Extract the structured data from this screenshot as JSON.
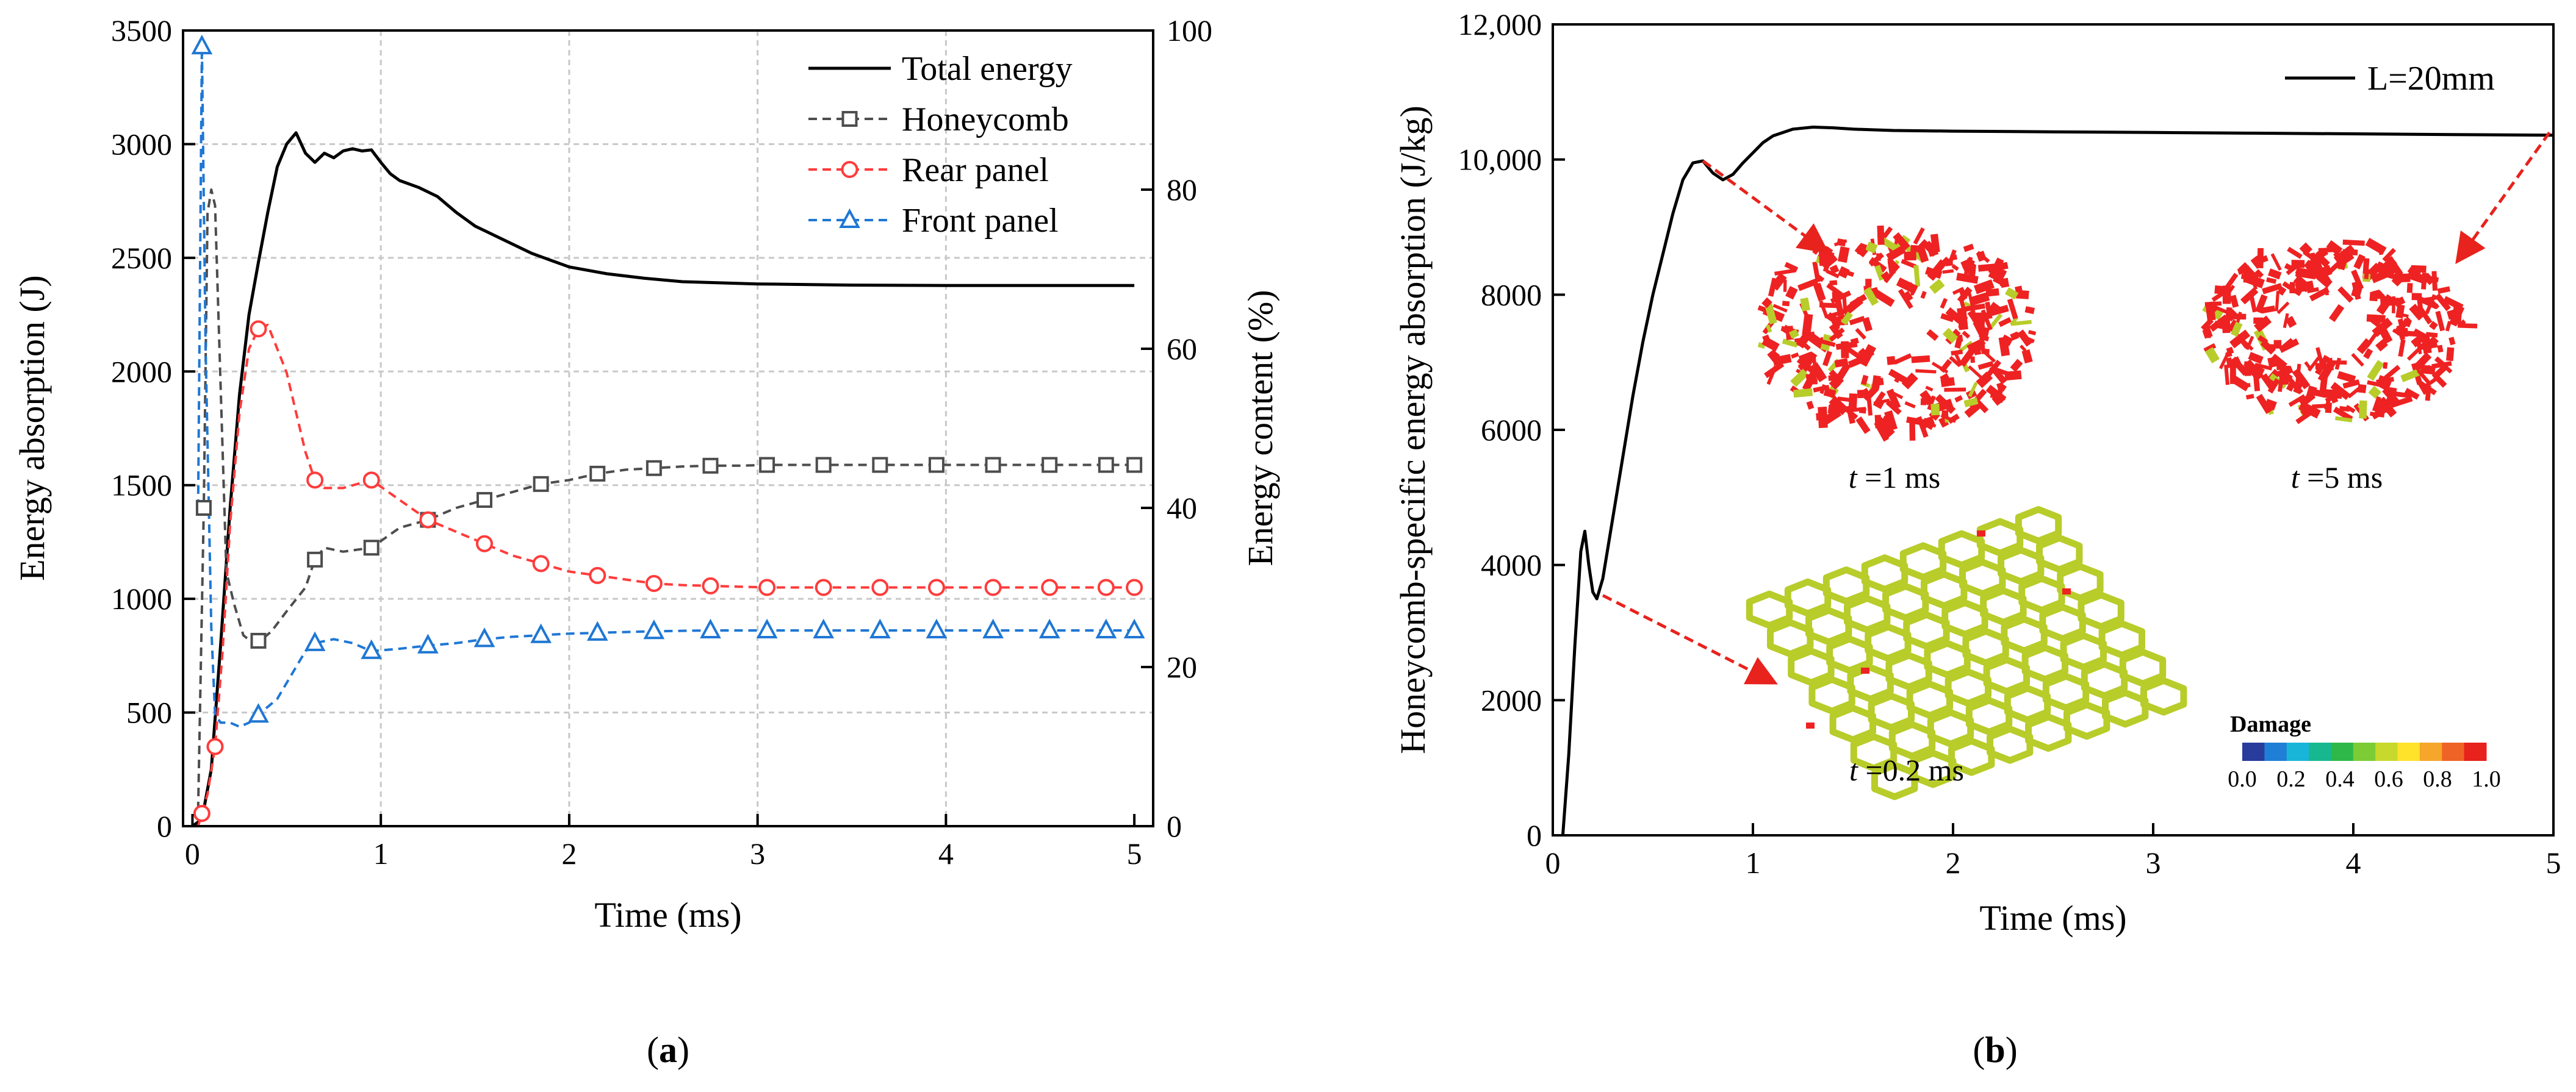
{
  "colors": {
    "total": "#000000",
    "honeycomb": "#4d4d4d",
    "rear": "#ff3b3b",
    "front": "#1f77d4",
    "grid": "#c8c8c8",
    "arrow": "#e8221c",
    "damage_red": "#ee2222",
    "damage_yellow": "#b8cc2a"
  },
  "chart_data": [
    {
      "type": "line",
      "panel_label": "a",
      "xlabel": "Time (ms)",
      "ylabel": "Energy absorption (J)",
      "ylabel_right": "Energy content (%)",
      "xlim": [
        -0.05,
        5.1
      ],
      "ylim": [
        0,
        3500
      ],
      "ylim_right": [
        0,
        100
      ],
      "xticks": [
        0,
        1,
        2,
        3,
        4,
        5
      ],
      "yticks": [
        0,
        500,
        1000,
        1500,
        2000,
        2500,
        3000,
        3500
      ],
      "yticks_right": [
        0,
        20,
        40,
        60,
        80,
        100
      ],
      "grid": true,
      "legend_position": "top-right",
      "series": [
        {
          "name": "Total energy",
          "axis": "left",
          "marker": "none",
          "x": [
            0.0,
            0.05,
            0.1,
            0.15,
            0.2,
            0.25,
            0.3,
            0.35,
            0.4,
            0.45,
            0.5,
            0.55,
            0.6,
            0.65,
            0.7,
            0.75,
            0.8,
            0.85,
            0.9,
            0.95,
            1.0,
            1.05,
            1.1,
            1.2,
            1.3,
            1.4,
            1.5,
            1.6,
            1.7,
            1.8,
            1.9,
            2.0,
            2.2,
            2.4,
            2.6,
            2.8,
            3.0,
            3.5,
            4.0,
            4.5,
            5.0
          ],
          "y": [
            0,
            30,
            250,
            800,
            1400,
            1900,
            2250,
            2480,
            2700,
            2900,
            3000,
            3050,
            2960,
            2920,
            2960,
            2940,
            2970,
            2980,
            2970,
            2975,
            2920,
            2870,
            2840,
            2810,
            2770,
            2700,
            2640,
            2600,
            2560,
            2520,
            2490,
            2460,
            2430,
            2410,
            2395,
            2390,
            2385,
            2380,
            2378,
            2378,
            2378
          ]
        },
        {
          "name": "Honeycomb",
          "axis": "right",
          "marker": "square",
          "x": [
            0.03,
            0.06,
            0.08,
            0.1,
            0.12,
            0.15,
            0.18,
            0.22,
            0.27,
            0.32,
            0.37,
            0.42,
            0.5,
            0.6,
            0.65,
            0.7,
            0.8,
            0.95,
            1.1,
            1.25,
            1.4,
            1.55,
            1.7,
            1.85,
            2.0,
            2.15,
            2.3,
            2.45,
            2.6,
            2.75,
            2.9,
            3.05,
            3.35,
            3.65,
            3.95,
            4.25,
            4.55,
            4.85,
            5.0
          ],
          "y": [
            2,
            40,
            77,
            80,
            78,
            55,
            32,
            28,
            24,
            23,
            23.5,
            24.5,
            27,
            30,
            33.5,
            35,
            34.5,
            35,
            37.5,
            38.5,
            40,
            41,
            42,
            43,
            43.5,
            44.3,
            44.8,
            45,
            45.2,
            45.3,
            45.3,
            45.4,
            45.4,
            45.4,
            45.4,
            45.4,
            45.4,
            45.4,
            45.4
          ],
          "marker_x": [
            0.06,
            0.35,
            0.65,
            0.95,
            1.25,
            1.55,
            1.85,
            2.15,
            2.45,
            2.75,
            3.05,
            3.35,
            3.65,
            3.95,
            4.25,
            4.55,
            4.85,
            5.0
          ]
        },
        {
          "name": "Rear panel",
          "axis": "right",
          "marker": "circle",
          "x": [
            0.03,
            0.08,
            0.12,
            0.16,
            0.2,
            0.25,
            0.3,
            0.35,
            0.4,
            0.45,
            0.5,
            0.55,
            0.6,
            0.65,
            0.7,
            0.8,
            0.95,
            1.1,
            1.25,
            1.4,
            1.55,
            1.7,
            1.85,
            2.0,
            2.15,
            2.3,
            2.45,
            2.6,
            2.75,
            2.9,
            3.05,
            3.35,
            3.65,
            3.95,
            4.25,
            4.55,
            4.85,
            5.0
          ],
          "y": [
            0,
            4,
            10,
            22,
            38,
            52,
            60,
            62.5,
            63,
            60,
            57,
            52,
            47,
            43.5,
            42.5,
            42.5,
            43.5,
            41,
            38.5,
            37,
            35.5,
            34,
            33,
            32,
            31.5,
            31,
            30.5,
            30.3,
            30.2,
            30.1,
            30,
            30,
            30,
            30,
            30,
            30,
            30,
            30
          ],
          "marker_x": [
            0.05,
            0.12,
            0.35,
            0.65,
            0.95,
            1.25,
            1.55,
            1.85,
            2.15,
            2.45,
            2.75,
            3.05,
            3.35,
            3.65,
            3.95,
            4.25,
            4.55,
            4.85,
            5.0
          ]
        },
        {
          "name": "Front panel",
          "axis": "right",
          "marker": "triangle",
          "x": [
            0.03,
            0.05,
            0.07,
            0.1,
            0.12,
            0.15,
            0.2,
            0.25,
            0.3,
            0.35,
            0.4,
            0.45,
            0.5,
            0.55,
            0.6,
            0.65,
            0.75,
            0.85,
            0.95,
            1.1,
            1.25,
            1.4,
            1.55,
            1.7,
            1.85,
            2.0,
            2.15,
            2.3,
            2.45,
            2.75,
            3.05,
            3.35,
            3.65,
            3.95,
            4.25,
            4.55,
            4.85,
            5.0
          ],
          "y": [
            40,
            98,
            60,
            25,
            14,
            13,
            13,
            12.5,
            13,
            14,
            15,
            16,
            18,
            20,
            22,
            23,
            23.5,
            23,
            22,
            22.3,
            22.7,
            23,
            23.5,
            23.8,
            24,
            24.2,
            24.3,
            24.4,
            24.5,
            24.6,
            24.6,
            24.6,
            24.6,
            24.6,
            24.6,
            24.6,
            24.6,
            24.6
          ],
          "marker_x": [
            0.05,
            0.35,
            0.65,
            0.95,
            1.25,
            1.55,
            1.85,
            2.15,
            2.45,
            2.75,
            3.05,
            3.35,
            3.65,
            3.95,
            4.25,
            4.55,
            4.85,
            5.0
          ]
        }
      ]
    },
    {
      "type": "line",
      "panel_label": "b",
      "xlabel": "Time (ms)",
      "ylabel": "Honeycomb-specific energy absorption (J/kg)",
      "xlim": [
        0,
        5
      ],
      "ylim": [
        0,
        12000
      ],
      "xticks": [
        0,
        1,
        2,
        3,
        4,
        5
      ],
      "yticks": [
        0,
        2000,
        4000,
        6000,
        8000,
        10000,
        12000
      ],
      "ytick_labels": [
        "0",
        "2000",
        "4000",
        "6000",
        "8000",
        "10,000",
        "12,000"
      ],
      "grid": false,
      "legend_position": "top-right",
      "series": [
        {
          "name": "L=20mm",
          "marker": "none",
          "x": [
            0.05,
            0.08,
            0.11,
            0.14,
            0.16,
            0.18,
            0.2,
            0.22,
            0.25,
            0.3,
            0.35,
            0.4,
            0.45,
            0.5,
            0.55,
            0.6,
            0.65,
            0.7,
            0.75,
            0.8,
            0.85,
            0.9,
            0.95,
            1.0,
            1.05,
            1.1,
            1.2,
            1.3,
            1.4,
            1.5,
            1.7,
            2.0,
            2.5,
            3.0,
            3.5,
            4.0,
            4.5,
            5.0
          ],
          "y": [
            0,
            1200,
            2800,
            4200,
            4500,
            4000,
            3600,
            3500,
            3800,
            4700,
            5600,
            6500,
            7300,
            8000,
            8600,
            9200,
            9700,
            9950,
            9980,
            9800,
            9700,
            9780,
            9950,
            10100,
            10250,
            10350,
            10450,
            10480,
            10470,
            10450,
            10430,
            10420,
            10410,
            10400,
            10390,
            10380,
            10370,
            10360
          ]
        }
      ],
      "snapshots": [
        {
          "label_t": "t",
          "label_rest": " =0.2 ms"
        },
        {
          "label_t": "t",
          "label_rest": " =1 ms"
        },
        {
          "label_t": "t",
          "label_rest": " =5 ms"
        }
      ],
      "colorbar": {
        "title": "Damage",
        "ticks": [
          "0.0",
          "0.2",
          "0.4",
          "0.6",
          "0.8",
          "1.0"
        ],
        "colors": [
          "#283c9c",
          "#1f7fd6",
          "#18b5d8",
          "#17b890",
          "#2eb84a",
          "#7ccc36",
          "#c7d92c",
          "#ffe22a",
          "#f5a62b",
          "#ef6426",
          "#e8221c"
        ]
      }
    }
  ]
}
